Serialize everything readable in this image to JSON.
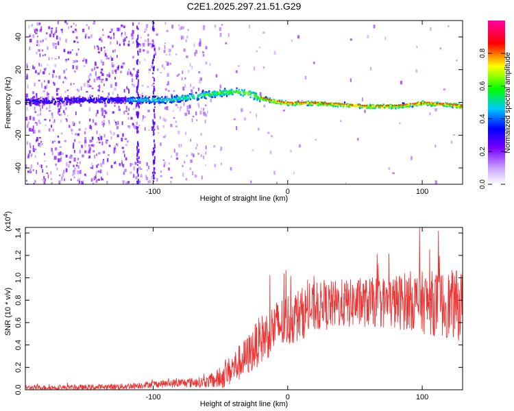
{
  "title": "C2E1.2025.297.21.51.G29",
  "chart_data": [
    {
      "id": "spectrogram",
      "type": "heatmap",
      "xlabel": "Height of straight line (km)",
      "ylabel": "Frequency (Hz)",
      "xlim": [
        -195,
        130
      ],
      "ylim": [
        -50,
        50
      ],
      "xticks": [
        -100,
        0,
        100
      ],
      "yticks": [
        -40,
        -20,
        0,
        20,
        40
      ],
      "colorbar": {
        "label": "Normalized spectral amplitude",
        "range": [
          0.0,
          1.0
        ],
        "ticks": [
          "0.0",
          "0.2",
          "0.4",
          "0.6",
          "0.8"
        ],
        "colors": [
          "#ffffff",
          "#7a00ff",
          "#0000ff",
          "#00c8ff",
          "#00ff00",
          "#ffff00",
          "#ff0000",
          "#ff00a0"
        ]
      },
      "signal_trace": {
        "description_points_km_hz": [
          [
            -190,
            1
          ],
          [
            -150,
            2
          ],
          [
            -120,
            2
          ],
          [
            -110,
            2
          ],
          [
            -90,
            2
          ],
          [
            -70,
            4
          ],
          [
            -55,
            6
          ],
          [
            -40,
            7
          ],
          [
            -30,
            6
          ],
          [
            -20,
            3
          ],
          [
            -10,
            1
          ],
          [
            0,
            0
          ],
          [
            20,
            0
          ],
          [
            40,
            -1
          ],
          [
            60,
            -2
          ],
          [
            80,
            -2
          ],
          [
            100,
            0
          ],
          [
            120,
            -1
          ],
          [
            130,
            -2
          ]
        ]
      }
    },
    {
      "id": "snr",
      "type": "line",
      "xlabel": "Height of straight line (km)",
      "ylabel": "SNR (10 * v/v)",
      "scale_label": "(x10",
      "scale_exp": "4",
      "scale_close": ")",
      "xlim": [
        -195,
        130
      ],
      "ylim": [
        0.0,
        1.45
      ],
      "xticks": [
        -100,
        0,
        100
      ],
      "yticks": [
        "0.0",
        "0.2",
        "0.4",
        "0.6",
        "0.8",
        "1.0",
        "1.2",
        "1.4"
      ],
      "line_color": "#ee3333",
      "trend_points": [
        [
          -195,
          0.02
        ],
        [
          -150,
          0.02
        ],
        [
          -120,
          0.03
        ],
        [
          -100,
          0.05
        ],
        [
          -80,
          0.06
        ],
        [
          -60,
          0.07
        ],
        [
          -50,
          0.1
        ],
        [
          -40,
          0.2
        ],
        [
          -30,
          0.3
        ],
        [
          -20,
          0.45
        ],
        [
          -10,
          0.55
        ],
        [
          0,
          0.62
        ],
        [
          10,
          0.68
        ],
        [
          20,
          0.73
        ],
        [
          30,
          0.75
        ],
        [
          40,
          0.77
        ],
        [
          50,
          0.77
        ],
        [
          60,
          0.78
        ],
        [
          70,
          0.78
        ],
        [
          80,
          0.78
        ],
        [
          90,
          0.8
        ],
        [
          100,
          0.78
        ],
        [
          110,
          0.77
        ],
        [
          120,
          0.76
        ],
        [
          130,
          0.75
        ]
      ],
      "noise_envelope": [
        [
          -195,
          0.02
        ],
        [
          -100,
          0.03
        ],
        [
          -60,
          0.05
        ],
        [
          -40,
          0.15
        ],
        [
          -20,
          0.22
        ],
        [
          0,
          0.25
        ],
        [
          20,
          0.22
        ],
        [
          60,
          0.22
        ],
        [
          100,
          0.28
        ],
        [
          130,
          0.32
        ]
      ],
      "peaks": [
        [
          -10,
          0.72
        ],
        [
          27,
          0.98
        ],
        [
          98,
          1.45
        ],
        [
          112,
          1.42
        ]
      ]
    }
  ]
}
